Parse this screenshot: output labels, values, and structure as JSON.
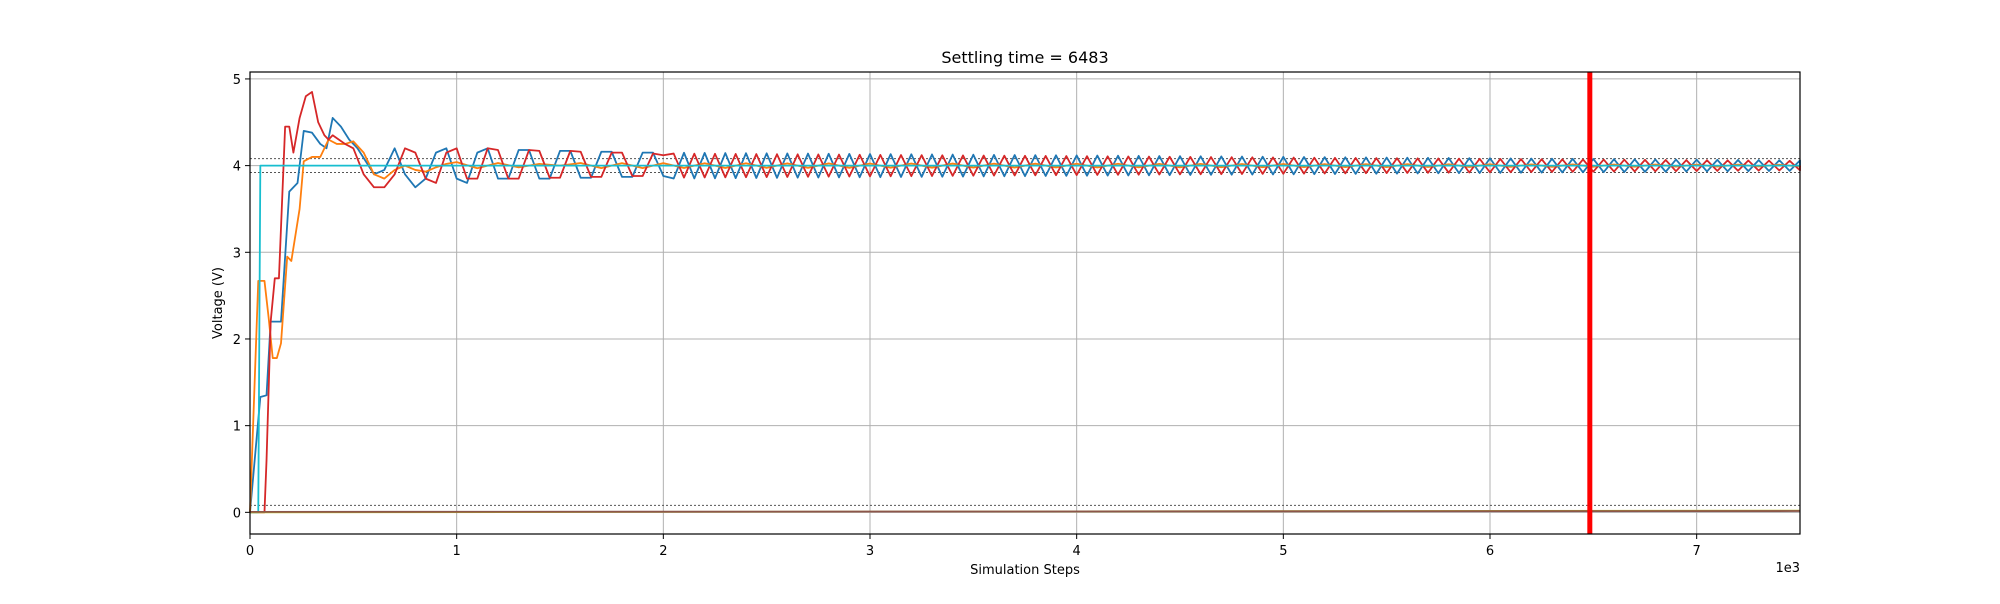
{
  "chart_data": {
    "type": "line",
    "title": "Settling time = 6483",
    "xlabel": "Simulation Steps",
    "ylabel": "Voltage (V)",
    "x_offset_label": "1e3",
    "xlim": [
      0,
      7500
    ],
    "ylim": [
      -0.25,
      5.08
    ],
    "x_ticks": [
      0,
      1000,
      2000,
      3000,
      4000,
      5000,
      6000,
      7000
    ],
    "x_tick_labels": [
      "0",
      "1",
      "2",
      "3",
      "4",
      "5",
      "6",
      "7"
    ],
    "y_ticks": [
      0,
      1,
      2,
      3,
      4,
      5
    ],
    "y_tick_labels": [
      "0",
      "1",
      "2",
      "3",
      "4",
      "5"
    ],
    "grid": true,
    "settling_time": 6483,
    "settling_marker_color": "#ff0000",
    "reference_lines": [
      {
        "y": 4.08,
        "color": "#555555",
        "style": "dotted"
      },
      {
        "y": 3.92,
        "color": "#555555",
        "style": "dotted"
      },
      {
        "y": 0.08,
        "color": "#555555",
        "style": "dotted"
      }
    ],
    "series": [
      {
        "color": "#1f77b4",
        "x": [
          0,
          50,
          80,
          100,
          150,
          190,
          230,
          260,
          300,
          340,
          370,
          400,
          440,
          480,
          520,
          560,
          600,
          650,
          700,
          750,
          800,
          850,
          900,
          950,
          1000,
          1050,
          1100,
          1150,
          1200,
          1250,
          1300,
          1350,
          1400,
          1450,
          1500,
          1550,
          1600,
          1650,
          1700,
          1750,
          1800,
          1850,
          1900,
          1950,
          2000
        ],
        "y": [
          0,
          1.33,
          1.35,
          2.2,
          2.2,
          3.7,
          3.8,
          4.4,
          4.38,
          4.25,
          4.2,
          4.55,
          4.45,
          4.3,
          4.2,
          4.05,
          3.9,
          3.95,
          4.2,
          3.9,
          3.75,
          3.85,
          4.15,
          4.2,
          3.85,
          3.8,
          4.15,
          4.2,
          3.85,
          3.85,
          4.18,
          4.18,
          3.85,
          3.85,
          4.17,
          4.17,
          3.86,
          3.86,
          4.16,
          4.16,
          3.87,
          3.87,
          4.15,
          4.15,
          3.88
        ],
        "steady_value": 4.0,
        "steady_amplitude_start": 0.15,
        "steady_amplitude_end": 0.06,
        "steady_period": 100,
        "phase": 0
      },
      {
        "color": "#ff7f0e",
        "x": [
          0,
          40,
          70,
          90,
          110,
          130,
          150,
          180,
          200,
          220,
          240,
          260,
          300,
          340,
          380,
          420,
          460,
          500,
          550,
          600,
          650,
          700,
          750,
          800,
          850,
          900,
          950,
          1000,
          1100,
          1200,
          1300,
          1400,
          1500
        ],
        "y": [
          0,
          2.67,
          2.67,
          2.25,
          1.78,
          1.78,
          1.95,
          2.95,
          2.9,
          3.2,
          3.5,
          4.05,
          4.1,
          4.1,
          4.3,
          4.25,
          4.25,
          4.28,
          4.15,
          3.9,
          3.85,
          3.95,
          4.0,
          3.95,
          3.93,
          3.98,
          4.02,
          4.04,
          3.97,
          4.03,
          3.98,
          4.02,
          4.0
        ],
        "steady_value": 4.0,
        "steady_amplitude_start": 0.03,
        "steady_amplitude_end": 0.01,
        "steady_period": 200,
        "phase": 0
      },
      {
        "color": "#d62728",
        "x": [
          0,
          70,
          80,
          100,
          120,
          140,
          170,
          190,
          210,
          240,
          270,
          300,
          330,
          360,
          380,
          400,
          430,
          460,
          500,
          550,
          600,
          650,
          700,
          750,
          800,
          850,
          900,
          950,
          1000,
          1050,
          1100,
          1150,
          1200,
          1250,
          1300,
          1350,
          1400,
          1450,
          1500,
          1550,
          1600,
          1650,
          1700,
          1750,
          1800,
          1850,
          1900,
          1950,
          2000
        ],
        "y": [
          0,
          0,
          0.6,
          2.2,
          2.7,
          2.7,
          4.45,
          4.45,
          4.15,
          4.55,
          4.8,
          4.85,
          4.5,
          4.35,
          4.3,
          4.35,
          4.3,
          4.25,
          4.2,
          3.9,
          3.75,
          3.75,
          3.9,
          4.2,
          4.15,
          3.85,
          3.8,
          4.15,
          4.2,
          3.85,
          3.85,
          4.2,
          4.18,
          3.85,
          3.85,
          4.18,
          4.17,
          3.86,
          3.86,
          4.17,
          4.16,
          3.87,
          3.87,
          4.15,
          4.15,
          3.88,
          3.88,
          4.14,
          4.12
        ],
        "steady_value": 4.0,
        "steady_amplitude_start": 0.14,
        "steady_amplitude_end": 0.055,
        "steady_period": 100,
        "phase": 50
      },
      {
        "color": "#17becf",
        "x": [
          0,
          40,
          50,
          7500
        ],
        "y": [
          0,
          0,
          4.0,
          4.0
        ]
      },
      {
        "color": "#bcbd22",
        "x": [
          0,
          7500
        ],
        "y": [
          0,
          0.02
        ]
      },
      {
        "color": "#8c564b",
        "x": [
          0,
          7500
        ],
        "y": [
          0.005,
          0.015
        ]
      }
    ]
  }
}
